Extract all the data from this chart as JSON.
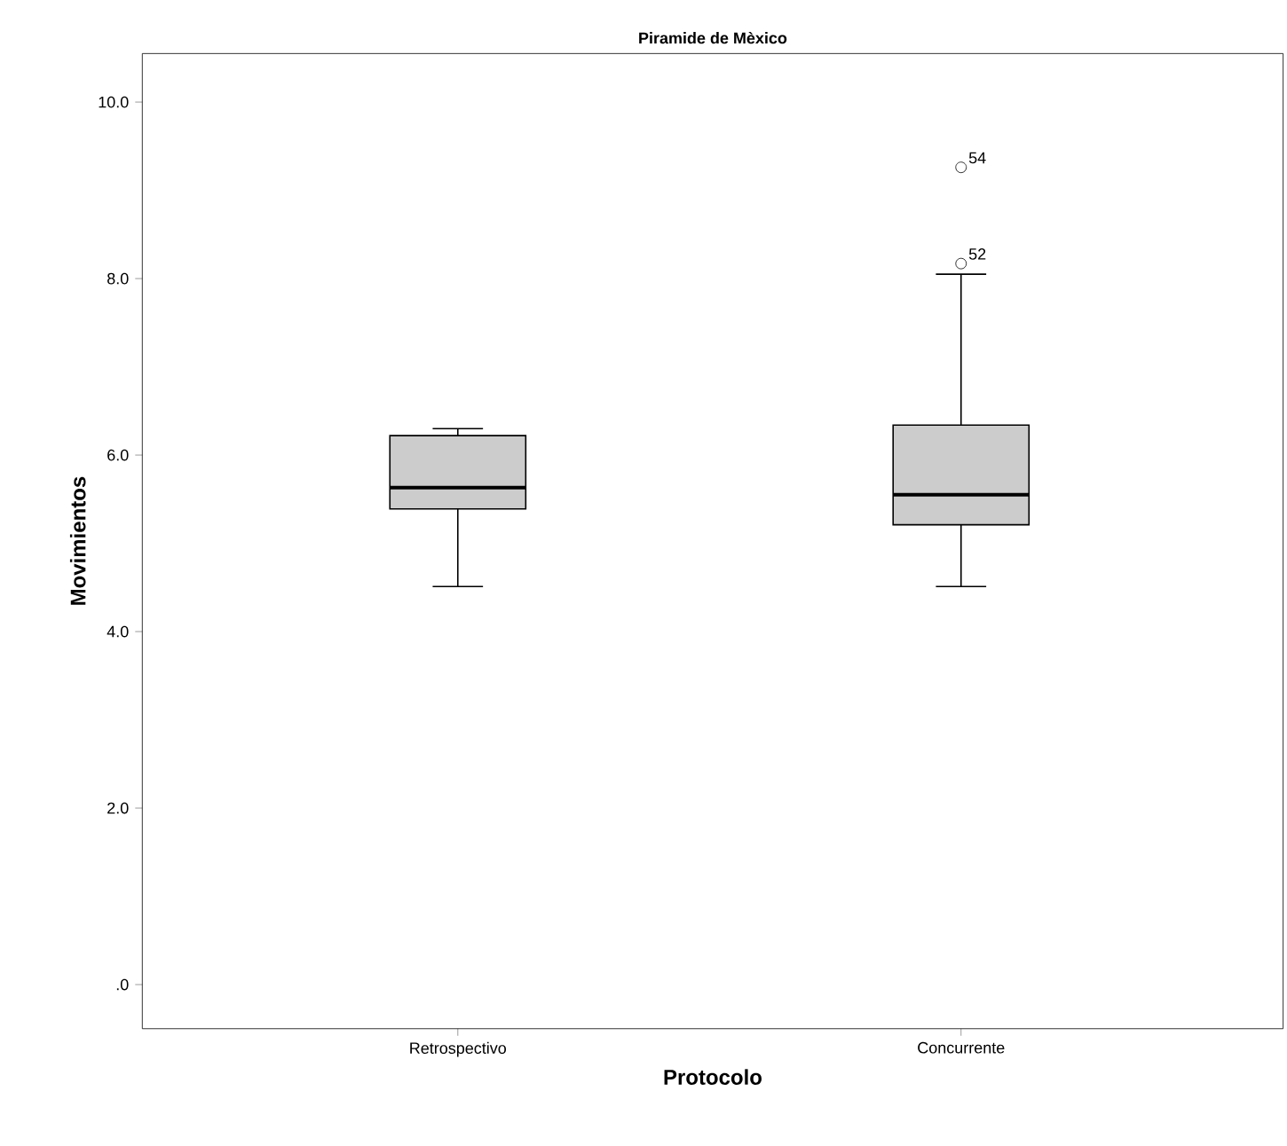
{
  "chart_data": {
    "type": "box",
    "title": "Piramide de Mèxico",
    "xlabel": "Protocolo",
    "ylabel": "Movimientos",
    "categories": [
      "Retrospectivo",
      "Concurrente"
    ],
    "boxes": [
      {
        "low": 4.51,
        "q1": 5.39,
        "median": 5.63,
        "q3": 6.22,
        "high": 6.3
      },
      {
        "low": 4.51,
        "q1": 5.21,
        "median": 5.55,
        "q3": 6.34,
        "high": 8.05,
        "outliers": [
          9.26,
          8.17
        ]
      }
    ],
    "color": "#cccccc",
    "ylim": [
      -0.5,
      10.55
    ],
    "yticks": [
      {
        "value": 0,
        "label": ".0"
      },
      {
        "value": 2,
        "label": "2.0"
      },
      {
        "value": 4,
        "label": "4.0"
      },
      {
        "value": 6,
        "label": "6.0"
      },
      {
        "value": 8,
        "label": "8.0"
      },
      {
        "value": 10,
        "label": "10.0"
      }
    ],
    "grid": false,
    "annotations": [
      "54",
      "52"
    ]
  }
}
